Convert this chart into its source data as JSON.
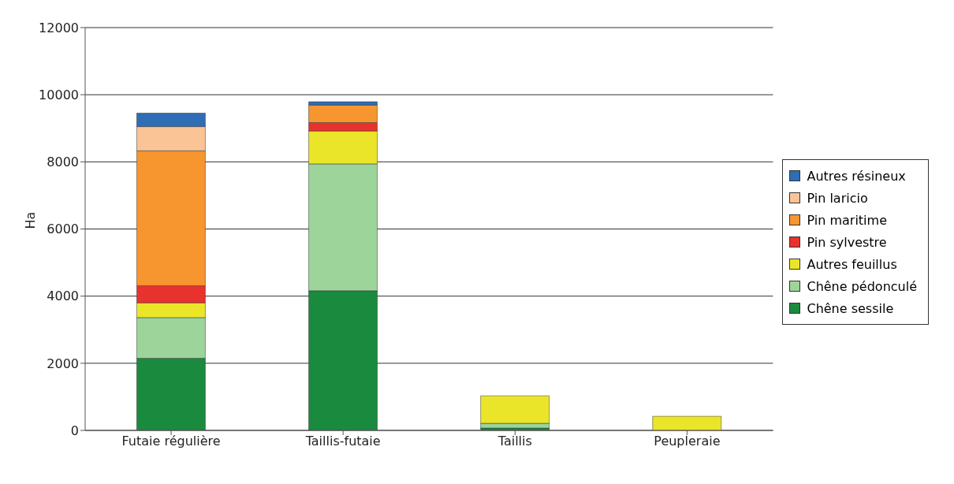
{
  "chart_data": {
    "type": "bar",
    "stacked": true,
    "ylabel": "Ha",
    "categories": [
      "Futaie régulière",
      "Taillis-futaie",
      "Taillis",
      "Peupleraie"
    ],
    "series": [
      {
        "name": "Chêne sessile",
        "color": "#1a8a3e",
        "values": [
          2150,
          4160,
          70,
          0
        ]
      },
      {
        "name": "Chêne pédonculé",
        "color": "#9dd49a",
        "values": [
          1210,
          3780,
          140,
          0
        ]
      },
      {
        "name": "Autres feuillus",
        "color": "#ebe52a",
        "values": [
          440,
          980,
          820,
          420
        ]
      },
      {
        "name": "Pin sylvestre",
        "color": "#e8322d",
        "values": [
          510,
          250,
          0,
          0
        ]
      },
      {
        "name": "Pin maritime",
        "color": "#f7952f",
        "values": [
          4020,
          520,
          0,
          0
        ]
      },
      {
        "name": "Pin laricio",
        "color": "#fbc496",
        "values": [
          720,
          0,
          0,
          0
        ]
      },
      {
        "name": "Autres résineux",
        "color": "#2f6db5",
        "values": [
          400,
          100,
          0,
          0
        ]
      }
    ],
    "ylim": [
      0,
      12000
    ],
    "yticks": [
      0,
      2000,
      4000,
      6000,
      8000,
      10000,
      12000
    ],
    "grid": "y",
    "legend": "right"
  }
}
